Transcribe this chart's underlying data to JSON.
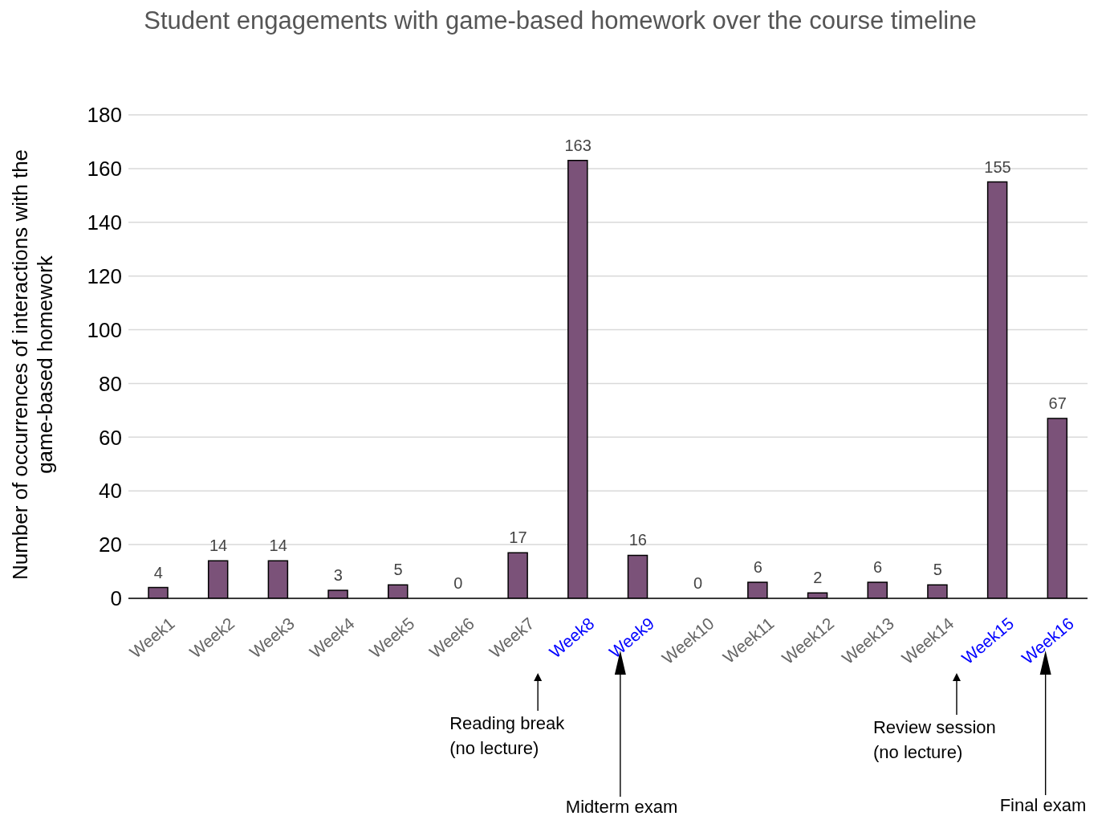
{
  "chart_data": {
    "type": "bar",
    "title": "Student engagements with game-based homework over the course timeline",
    "ylabel": "Number of occurrences of interactions with the game-based homework",
    "categories": [
      "Week1",
      "Week2",
      "Week3",
      "Week4",
      "Week5",
      "Week6",
      "Week7",
      "Week8",
      "Week9",
      "Week10",
      "Week11",
      "Week12",
      "Week13",
      "Week14",
      "Week15",
      "Week16"
    ],
    "values": [
      4,
      14,
      14,
      3,
      5,
      0,
      17,
      163,
      16,
      0,
      6,
      2,
      6,
      5,
      155,
      67
    ],
    "color": "#7b5279",
    "ylim": [
      0,
      180
    ],
    "yticks": [
      0,
      20,
      40,
      60,
      80,
      100,
      120,
      140,
      160,
      180
    ],
    "grid": "y",
    "data_labels": true,
    "legend": false,
    "annotations": [
      "Reading break\n(no lecture)",
      "Midterm exam",
      "Review session\n(no lecture)",
      "Final exam"
    ]
  }
}
